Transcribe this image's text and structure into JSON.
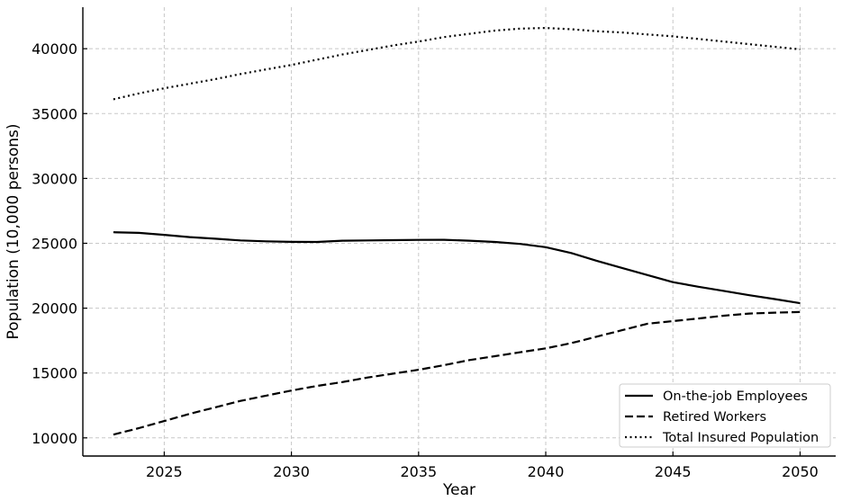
{
  "chart_data": {
    "type": "line",
    "xlabel": "Year",
    "ylabel": "Population (10,000 persons)",
    "xlim": [
      2021.8,
      2051.4
    ],
    "ylim": [
      8600,
      43200
    ],
    "x_ticks": [
      2025,
      2030,
      2035,
      2040,
      2045,
      2050
    ],
    "y_ticks": [
      10000,
      15000,
      20000,
      25000,
      30000,
      35000,
      40000
    ],
    "grid": true,
    "legend_position": "lower-right",
    "x": [
      2023,
      2024,
      2025,
      2026,
      2027,
      2028,
      2029,
      2030,
      2031,
      2032,
      2033,
      2034,
      2035,
      2036,
      2037,
      2038,
      2039,
      2040,
      2041,
      2042,
      2043,
      2044,
      2045,
      2046,
      2047,
      2048,
      2049,
      2050
    ],
    "series": [
      {
        "name": "On-the-job Employees",
        "style": "solid",
        "values": [
          25850,
          25800,
          25650,
          25480,
          25350,
          25220,
          25150,
          25110,
          25100,
          25200,
          25220,
          25240,
          25260,
          25270,
          25200,
          25100,
          24950,
          24700,
          24250,
          23650,
          23100,
          22550,
          22000,
          21650,
          21330,
          21000,
          20700,
          20380
        ]
      },
      {
        "name": "Retired Workers",
        "style": "dashed",
        "values": [
          10250,
          10750,
          11300,
          11850,
          12350,
          12850,
          13250,
          13650,
          14000,
          14300,
          14650,
          14950,
          15250,
          15600,
          16000,
          16300,
          16600,
          16900,
          17300,
          17800,
          18300,
          18800,
          19000,
          19200,
          19420,
          19580,
          19650,
          19700
        ]
      },
      {
        "name": "Total Insured Population",
        "style": "dotted",
        "values": [
          36100,
          36550,
          36950,
          37300,
          37650,
          38050,
          38400,
          38750,
          39150,
          39550,
          39900,
          40250,
          40550,
          40900,
          41150,
          41400,
          41550,
          41600,
          41500,
          41350,
          41250,
          41100,
          40950,
          40750,
          40550,
          40350,
          40150,
          39950
        ]
      }
    ]
  }
}
